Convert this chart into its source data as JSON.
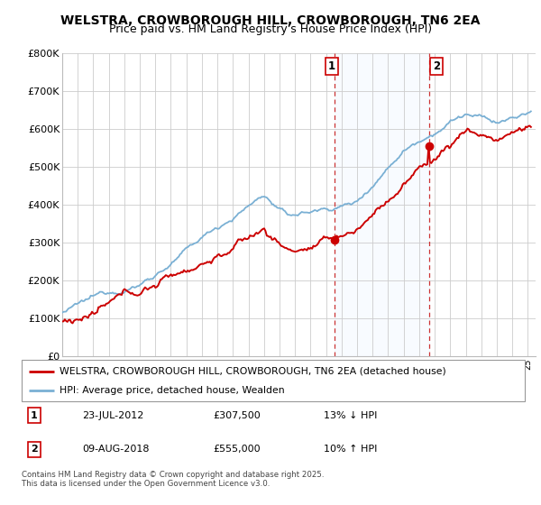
{
  "title": "WELSTRA, CROWBOROUGH HILL, CROWBOROUGH, TN6 2EA",
  "subtitle": "Price paid vs. HM Land Registry's House Price Index (HPI)",
  "ylim": [
    0,
    800000
  ],
  "yticks": [
    0,
    100000,
    200000,
    300000,
    400000,
    500000,
    600000,
    700000,
    800000
  ],
  "ytick_labels": [
    "£0",
    "£100K",
    "£200K",
    "£300K",
    "£400K",
    "£500K",
    "£600K",
    "£700K",
    "£800K"
  ],
  "hpi_color": "#7ab0d4",
  "price_color": "#cc0000",
  "sale1_year": 2012.55,
  "sale1_price": 307500,
  "sale2_year": 2018.62,
  "sale2_price": 555000,
  "legend_label1": "WELSTRA, CROWBOROUGH HILL, CROWBOROUGH, TN6 2EA (detached house)",
  "legend_label2": "HPI: Average price, detached house, Wealden",
  "table_row1": [
    "1",
    "23-JUL-2012",
    "£307,500",
    "13% ↓ HPI"
  ],
  "table_row2": [
    "2",
    "09-AUG-2018",
    "£555,000",
    "10% ↑ HPI"
  ],
  "footnote": "Contains HM Land Registry data © Crown copyright and database right 2025.\nThis data is licensed under the Open Government Licence v3.0.",
  "bg_highlight_color": "#ddeeff",
  "grid_color": "#cccccc",
  "title_fontsize": 10,
  "subtitle_fontsize": 9
}
